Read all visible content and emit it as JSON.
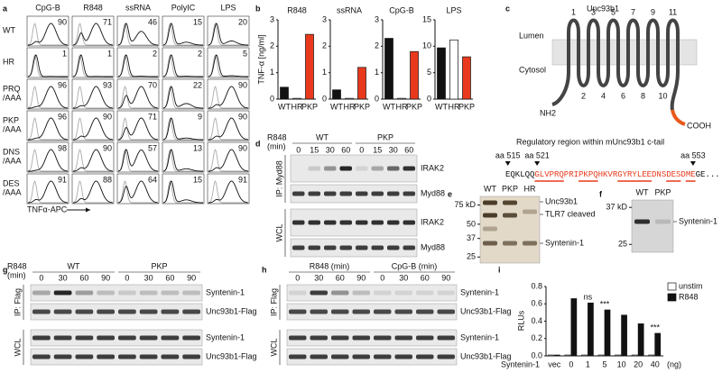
{
  "panel_labels": [
    "a",
    "b",
    "c",
    "d",
    "e",
    "f",
    "g",
    "h",
    "i"
  ],
  "flow": {
    "columns": [
      "CpG-B",
      "R848",
      "ssRNA",
      "PolyIC",
      "LPS"
    ],
    "rows": [
      {
        "label": [
          "WT"
        ],
        "percents": [
          90,
          71,
          46,
          15,
          20
        ]
      },
      {
        "label": [
          "HR"
        ],
        "percents": [
          1,
          1,
          2,
          2,
          5
        ]
      },
      {
        "label": [
          "PRQ",
          "/AAA"
        ],
        "percents": [
          96,
          93,
          70,
          22,
          90
        ]
      },
      {
        "label": [
          "PKP",
          "/AAA"
        ],
        "percents": [
          96,
          90,
          71,
          9,
          90
        ]
      },
      {
        "label": [
          "DNS",
          "/AAA"
        ],
        "percents": [
          98,
          90,
          57,
          13,
          90
        ]
      },
      {
        "label": [
          "DES",
          "/AAA"
        ],
        "percents": [
          91,
          88,
          64,
          15,
          91
        ]
      }
    ],
    "x_label": "TNFα-APC"
  },
  "chart_data": [
    {
      "type": "bar",
      "title": "R848",
      "y_label": "TNF-α [ng/ml]",
      "categories": [
        "WT",
        "HR",
        "PKP"
      ],
      "values": [
        0.45,
        0.03,
        2.45
      ],
      "colors": [
        "#111111",
        "#ffffff",
        "#e8391d"
      ],
      "ylim": [
        0,
        3
      ],
      "yticks": [
        0,
        1,
        2,
        3
      ]
    },
    {
      "type": "bar",
      "title": "ssRNA",
      "categories": [
        "WT",
        "HR",
        "PKP"
      ],
      "values": [
        0.35,
        0.03,
        1.2
      ],
      "colors": [
        "#111111",
        "#ffffff",
        "#e8391d"
      ],
      "ylim": [
        0,
        3
      ],
      "yticks": [
        0,
        1,
        2,
        3
      ]
    },
    {
      "type": "bar",
      "title": "CpG-B",
      "categories": [
        "WT",
        "HR",
        "PKP"
      ],
      "values": [
        2.3,
        0.03,
        1.8
      ],
      "colors": [
        "#111111",
        "#ffffff",
        "#e8391d"
      ],
      "ylim": [
        0,
        3
      ],
      "yticks": [
        0,
        1,
        2,
        3
      ]
    },
    {
      "type": "bar",
      "title": "LPS",
      "categories": [
        "WT",
        "HR",
        "PKP"
      ],
      "values": [
        9.7,
        11.2,
        8.0
      ],
      "colors": [
        "#111111",
        "#ffffff",
        "#e8391d"
      ],
      "ylim": [
        0,
        15
      ],
      "yticks": [
        0,
        5,
        10,
        15
      ]
    },
    {
      "type": "grouped_bar",
      "y_label": "RLUs",
      "x_label": "Syntenin-1",
      "x_unit": "(ng)",
      "legend": "top-right",
      "categories": [
        "vec",
        "0",
        "1",
        "5",
        "10",
        "20",
        "40"
      ],
      "series": [
        {
          "name": "unstim",
          "color": "#ffffff",
          "values": [
            0.01,
            0.01,
            0.01,
            0.01,
            0.01,
            0.01,
            0.01
          ]
        },
        {
          "name": "R848",
          "color": "#111111",
          "values": [
            0.01,
            0.66,
            0.61,
            0.53,
            0.47,
            0.37,
            0.26
          ]
        }
      ],
      "annotations": [
        {
          "text": "ns",
          "category": "1"
        },
        {
          "text": "***",
          "category": "5"
        },
        {
          "text": "***",
          "category": "40"
        }
      ],
      "ylim": [
        0,
        0.8
      ],
      "yticks": [
        {
          "value": 0,
          "label": "0.0"
        },
        0.2,
        0.4,
        0.6,
        0.8
      ]
    }
  ],
  "topology": {
    "title": "Unc93b1",
    "lumen": "Lumen",
    "cytosol": "Cytosol",
    "loops": [
      1,
      2,
      3,
      4,
      5,
      6,
      7,
      8,
      9,
      10,
      11
    ],
    "n_term": "NH2",
    "c_term": "COOH",
    "region_title": "Regulatory region within mUnc93b1 c-tail",
    "markers": [
      "aa 515",
      "aa 521",
      "aa 553"
    ],
    "sequence": [
      {
        "text": "EQKLQQ",
        "color": "#111111"
      },
      {
        "text": "GLVPRQPRIPKPQHKVRGYRYLEEDNSDESDME",
        "color": "#e8391d"
      },
      {
        "text": "GE...",
        "color": "#111111"
      }
    ]
  },
  "blot_d": {
    "treatment": "R848",
    "unit": "(min)",
    "groups": [
      {
        "name": "WT",
        "times": [
          0,
          15,
          30,
          60
        ]
      },
      {
        "name": "PKP",
        "times": [
          0,
          15,
          30,
          60
        ]
      }
    ],
    "sections": [
      {
        "label": "IP: Myd88",
        "bands": [
          "IRAK2",
          "Myd88"
        ]
      },
      {
        "label": "WCL",
        "bands": [
          "IRAK2",
          "Myd88"
        ]
      }
    ]
  },
  "blot_e": {
    "lanes": [
      "WT",
      "PKP",
      "HR"
    ],
    "markers": [
      {
        "value": 75,
        "label": "75 kD"
      },
      50,
      37,
      25
    ],
    "ylim": [
      90,
      22
    ],
    "log_scale": true,
    "bands": [
      "Unc93b1",
      "TLR7 cleaved",
      "Syntenin-1"
    ]
  },
  "blot_f": {
    "lanes": [
      "WT",
      "PKP"
    ],
    "markers": [
      {
        "value": 37,
        "label": "37 kD"
      },
      25
    ],
    "ylim": [
      40,
      23
    ],
    "log_scale": true,
    "bands": [
      "Syntenin-1"
    ]
  },
  "blot_g": {
    "treatment": "R848",
    "unit": "(min)",
    "groups": [
      {
        "name": "WT",
        "times": [
          0,
          30,
          60,
          90
        ]
      },
      {
        "name": "PKP",
        "times": [
          0,
          30,
          60,
          90
        ]
      }
    ],
    "sections": [
      {
        "label": "IP: Flag",
        "bands": [
          "Syntenin-1",
          "Unc93b1-Flag"
        ]
      },
      {
        "label": "WCL",
        "bands": [
          "Syntenin-1",
          "Unc93b1-Flag"
        ]
      }
    ]
  },
  "blot_h": {
    "groups": [
      {
        "name": "R848 (min)",
        "times": [
          0,
          30,
          60,
          90
        ]
      },
      {
        "name": "CpG-B (min)",
        "times": [
          0,
          30,
          60,
          90
        ]
      }
    ],
    "sections": [
      {
        "label": "IP: Flag",
        "bands": [
          "Syntenin-1",
          "Unc93b1-Flag"
        ]
      },
      {
        "label": "WCL",
        "bands": [
          "Syntenin-1",
          "Unc93b1-Flag"
        ]
      }
    ]
  }
}
